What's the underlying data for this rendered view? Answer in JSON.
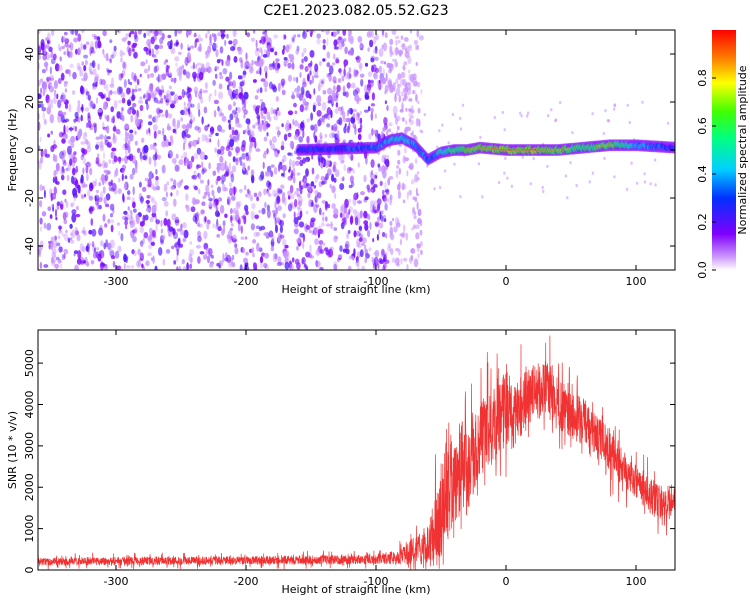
{
  "title": "C2E1.2023.082.05.52.G23",
  "colors": {
    "snr_line": "#f03232",
    "spectrogram_low": "#8000ff",
    "spectrogram_high": "#ff0000",
    "frame": "#000000",
    "background": "#ffffff"
  },
  "chart_data": [
    {
      "type": "heatmap",
      "title": "C2E1.2023.082.05.52.G23",
      "xlabel": "Height of straight line (km)",
      "ylabel": "Frequency (Hz)",
      "xlim": [
        -360,
        130
      ],
      "ylim": [
        -50,
        50
      ],
      "x_ticks": [
        -300,
        -200,
        -100,
        0,
        100
      ],
      "x_tick_labels": [
        "-300",
        "-200",
        "-100",
        "0",
        "100"
      ],
      "y_ticks": [
        -40,
        -20,
        0,
        20,
        40
      ],
      "y_tick_labels": [
        "-40",
        "-20",
        "0",
        "20",
        "40"
      ],
      "noise_region_x": [
        -360,
        -75
      ],
      "signal_track": {
        "x": [
          -160,
          -100,
          -90,
          -80,
          -70,
          -60,
          -50,
          -40,
          -30,
          -20,
          0,
          20,
          40,
          60,
          80,
          100,
          130
        ],
        "y": [
          0,
          1,
          4,
          5,
          2,
          -4,
          -1,
          0,
          0,
          1,
          0,
          0,
          0,
          1,
          2,
          2,
          1
        ],
        "amplitude": [
          0.35,
          0.45,
          0.55,
          0.6,
          0.5,
          0.45,
          0.6,
          0.75,
          0.8,
          0.85,
          0.9,
          0.9,
          0.85,
          0.75,
          0.85,
          0.55,
          0.4
        ]
      },
      "colorbar": {
        "label": "Normalized spectral amplitude",
        "ticks": [
          0.0,
          0.2,
          0.4,
          0.6,
          0.8
        ],
        "tick_labels": [
          "0.0",
          "0.2",
          "0.4",
          "0.6",
          "0.8"
        ],
        "range": [
          0,
          1
        ],
        "colormap": "rainbow"
      },
      "grid": false
    },
    {
      "type": "line",
      "xlabel": "Height of straight line (km)",
      "ylabel": "SNR (10 * v/v)",
      "xlim": [
        -360,
        130
      ],
      "ylim": [
        0,
        5800
      ],
      "x_ticks": [
        -300,
        -200,
        -100,
        0,
        100
      ],
      "x_tick_labels": [
        "-300",
        "-200",
        "-100",
        "0",
        "100"
      ],
      "y_ticks": [
        0,
        1000,
        2000,
        3000,
        4000,
        5000
      ],
      "y_tick_labels": [
        "0",
        "1000",
        "2000",
        "3000",
        "4000",
        "5000"
      ],
      "series": [
        {
          "x": [
            -360,
            -300,
            -200,
            -100,
            -80,
            -60,
            -50,
            -45,
            -40,
            -35,
            -30,
            -25,
            -20,
            -15,
            -10,
            -5,
            0,
            5,
            10,
            20,
            30,
            40,
            50,
            60,
            70,
            80,
            90,
            100,
            110,
            120,
            130
          ],
          "y": [
            200,
            220,
            230,
            260,
            330,
            600,
            1200,
            2200,
            1800,
            2600,
            2300,
            2900,
            3100,
            3400,
            3300,
            3700,
            4000,
            3600,
            3900,
            4300,
            4400,
            4100,
            3700,
            3600,
            3200,
            2900,
            2500,
            2200,
            1800,
            1600,
            1700
          ],
          "spread": [
            120,
            130,
            130,
            150,
            250,
            700,
            1500,
            2000,
            1600,
            1500,
            1300,
            1300,
            1200,
            1200,
            1100,
            1200,
            1300,
            1100,
            1000,
            900,
            900,
            850,
            800,
            750,
            700,
            700,
            650,
            600,
            600,
            550,
            550
          ]
        }
      ],
      "grid": false
    }
  ]
}
